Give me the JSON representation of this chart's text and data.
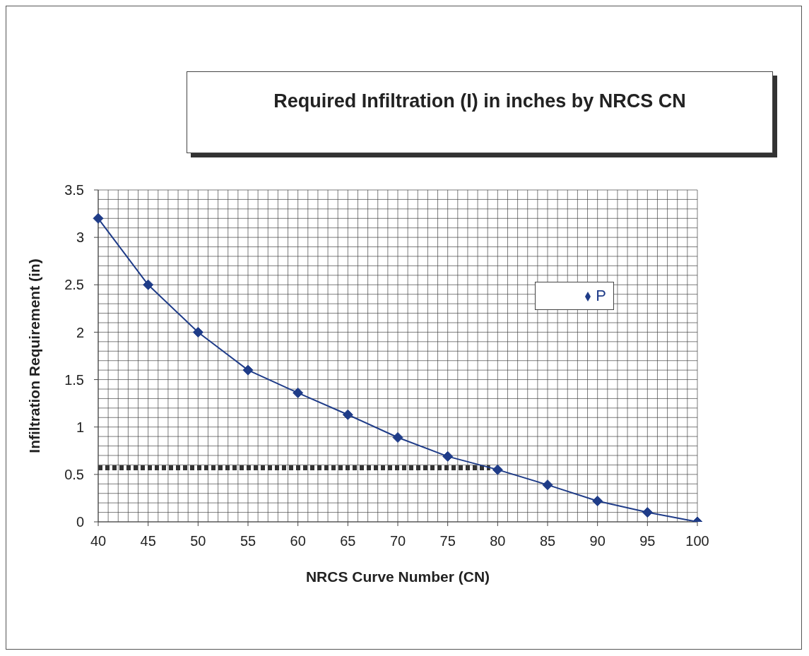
{
  "chart_data": {
    "type": "line",
    "title": "Required Infiltration (I) in inches by NRCS CN",
    "xlabel": "NRCS Curve Number (CN)",
    "ylabel": "Infiltration Requirement (in)",
    "categories": [
      "40",
      "45",
      "50",
      "55",
      "60",
      "65",
      "70",
      "75",
      "80",
      "85",
      "90",
      "95",
      "100"
    ],
    "series": [
      {
        "name": "P",
        "color": "#1f3c88",
        "values": [
          3.2,
          2.5,
          2.0,
          1.6,
          1.36,
          1.13,
          0.89,
          0.69,
          0.55,
          0.39,
          0.22,
          0.1,
          0
        ]
      }
    ],
    "ylim": [
      0,
      3.5
    ],
    "yticks": [
      0,
      0.5,
      1,
      1.5,
      2,
      2.5,
      3,
      3.5
    ],
    "ref_lines": [
      {
        "axis": "y",
        "value": 0.57,
        "color": "#333333",
        "line_style": "dotted"
      }
    ],
    "grid": true,
    "legend": "right",
    "marker": "diamond",
    "line_style": "solid"
  }
}
